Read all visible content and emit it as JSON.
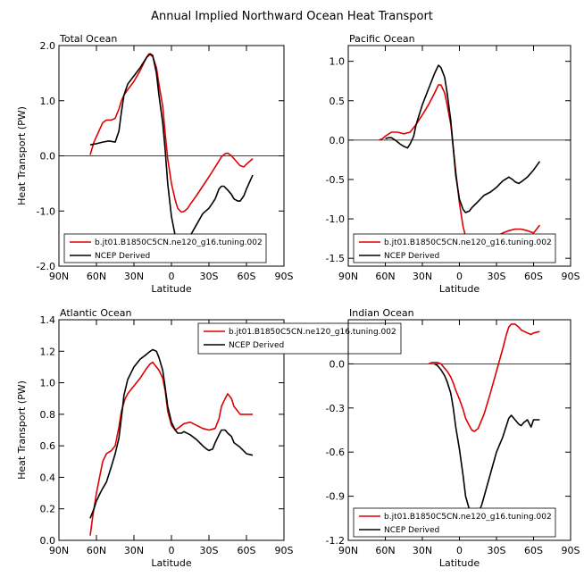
{
  "figure_title": "Annual Implied Northward Ocean Heat Transport",
  "colors": {
    "model": "#e00000",
    "ncep": "#000000"
  },
  "chart_data": [
    {
      "type": "line",
      "title": "Total Ocean",
      "xlabel": "Latitude",
      "ylabel": "Heat Transport (PW)",
      "xlim": [
        90,
        -90
      ],
      "ylim": [
        -2.0,
        2.0
      ],
      "xticks": [
        90,
        60,
        30,
        0,
        -30,
        -60,
        -90
      ],
      "xtick_labels": [
        "90N",
        "60N",
        "30N",
        "0",
        "30S",
        "60S",
        "90S"
      ],
      "yticks": [
        -2.0,
        -1.0,
        0.0,
        1.0,
        2.0
      ],
      "ytick_labels": [
        "-2.0",
        "-1.0",
        "0.0",
        "1.0",
        "2.0"
      ],
      "zero_line": true,
      "legend_placement": "bottom-left",
      "legend": [
        "b.jt01.B1850C5CN.ne120_g16.tuning.002",
        "NCEP Derived"
      ],
      "series": [
        {
          "name": "b.jt01.B1850C5CN.ne120_g16.tuning.002",
          "color": "model",
          "x": [
            65,
            62,
            58,
            55,
            52,
            48,
            45,
            42,
            40,
            38,
            35,
            30,
            25,
            20,
            18,
            15,
            12,
            10,
            7,
            5,
            3,
            0,
            -3,
            -5,
            -8,
            -10,
            -13,
            -15,
            -20,
            -25,
            -30,
            -35,
            -40,
            -43,
            -45,
            -48,
            -50,
            -55,
            -58,
            -60,
            -65
          ],
          "y": [
            0.02,
            0.25,
            0.45,
            0.6,
            0.65,
            0.65,
            0.68,
            0.85,
            1.0,
            1.1,
            1.2,
            1.35,
            1.55,
            1.78,
            1.85,
            1.8,
            1.6,
            1.3,
            0.9,
            0.4,
            -0.05,
            -0.5,
            -0.8,
            -0.95,
            -1.02,
            -1.01,
            -0.95,
            -0.88,
            -0.72,
            -0.55,
            -0.38,
            -0.2,
            -0.02,
            0.04,
            0.05,
            0.0,
            -0.05,
            -0.18,
            -0.2,
            -0.15,
            -0.05
          ]
        },
        {
          "name": "NCEP Derived",
          "color": "ncep",
          "x": [
            65,
            60,
            55,
            50,
            45,
            42,
            40,
            38,
            35,
            30,
            25,
            20,
            17,
            15,
            12,
            10,
            7,
            5,
            3,
            0,
            -3,
            -5,
            -8,
            -10,
            -13,
            -15,
            -20,
            -25,
            -30,
            -35,
            -38,
            -40,
            -42,
            -45,
            -48,
            -50,
            -53,
            -55,
            -58,
            -60,
            -65
          ],
          "y": [
            0.2,
            0.22,
            0.25,
            0.27,
            0.25,
            0.45,
            0.8,
            1.1,
            1.3,
            1.45,
            1.6,
            1.78,
            1.85,
            1.82,
            1.5,
            1.1,
            0.6,
            0.1,
            -0.5,
            -1.1,
            -1.45,
            -1.6,
            -1.65,
            -1.62,
            -1.55,
            -1.45,
            -1.25,
            -1.05,
            -0.95,
            -0.78,
            -0.6,
            -0.55,
            -0.55,
            -0.62,
            -0.7,
            -0.78,
            -0.82,
            -0.82,
            -0.72,
            -0.6,
            -0.35
          ]
        }
      ]
    },
    {
      "type": "line",
      "title": "Pacific Ocean",
      "xlabel": "Latitude",
      "ylabel": "",
      "xlim": [
        90,
        -90
      ],
      "ylim": [
        -1.6,
        1.2
      ],
      "xticks": [
        90,
        60,
        30,
        0,
        -30,
        -60,
        -90
      ],
      "xtick_labels": [
        "90N",
        "60N",
        "30N",
        "0",
        "30S",
        "60S",
        "90S"
      ],
      "yticks": [
        -1.5,
        -1.0,
        -0.5,
        0.0,
        0.5,
        1.0
      ],
      "ytick_labels": [
        "-1.5",
        "-1.0",
        "-0.5",
        "0.0",
        "0.5",
        "1.0"
      ],
      "zero_line": true,
      "legend_placement": "bottom-left",
      "legend": [
        "b.jt01.B1850C5CN.ne120_g16.tuning.002",
        "NCEP Derived"
      ],
      "series": [
        {
          "name": "b.jt01.B1850C5CN.ne120_g16.tuning.002",
          "color": "model",
          "x": [
            65,
            62,
            60,
            55,
            50,
            45,
            40,
            35,
            30,
            25,
            20,
            17,
            15,
            12,
            10,
            7,
            5,
            3,
            0,
            -3,
            -5,
            -10,
            -15,
            -20,
            -25,
            -30,
            -35,
            -40,
            -45,
            -50,
            -55,
            -60,
            -63,
            -65
          ],
          "y": [
            0.0,
            0.02,
            0.05,
            0.1,
            0.1,
            0.08,
            0.1,
            0.2,
            0.32,
            0.45,
            0.6,
            0.7,
            0.7,
            0.6,
            0.45,
            0.2,
            -0.1,
            -0.4,
            -0.8,
            -1.1,
            -1.22,
            -1.27,
            -1.28,
            -1.28,
            -1.26,
            -1.22,
            -1.18,
            -1.15,
            -1.13,
            -1.13,
            -1.15,
            -1.18,
            -1.12,
            -1.08
          ]
        },
        {
          "name": "NCEP Derived",
          "color": "ncep",
          "x": [
            60,
            57,
            55,
            52,
            48,
            45,
            42,
            40,
            37,
            35,
            30,
            25,
            20,
            17,
            15,
            12,
            10,
            7,
            5,
            3,
            0,
            -3,
            -5,
            -8,
            -10,
            -15,
            -20,
            -25,
            -30,
            -35,
            -40,
            -43,
            -45,
            -48,
            -50,
            -55,
            -60,
            -65
          ],
          "y": [
            0.02,
            0.03,
            0.03,
            0.0,
            -0.05,
            -0.08,
            -0.1,
            -0.05,
            0.05,
            0.2,
            0.45,
            0.65,
            0.85,
            0.95,
            0.92,
            0.8,
            0.6,
            0.25,
            -0.1,
            -0.45,
            -0.75,
            -0.88,
            -0.92,
            -0.9,
            -0.86,
            -0.78,
            -0.7,
            -0.66,
            -0.6,
            -0.52,
            -0.47,
            -0.5,
            -0.53,
            -0.55,
            -0.53,
            -0.47,
            -0.38,
            -0.27
          ]
        }
      ]
    },
    {
      "type": "line",
      "title": "Atlantic Ocean",
      "xlabel": "Latitude",
      "ylabel": "Heat Transport (PW)",
      "xlim": [
        90,
        -90
      ],
      "ylim": [
        0.0,
        1.4
      ],
      "xticks": [
        90,
        60,
        30,
        0,
        -30,
        -60,
        -90
      ],
      "xtick_labels": [
        "90N",
        "60N",
        "30N",
        "0",
        "30S",
        "60S",
        "90S"
      ],
      "yticks": [
        0.0,
        0.2,
        0.4,
        0.6,
        0.8,
        1.0,
        1.2,
        1.4
      ],
      "ytick_labels": [
        "0.0",
        "0.2",
        "0.4",
        "0.6",
        "0.8",
        "1.0",
        "1.2",
        "1.4"
      ],
      "zero_line": false,
      "legend_placement": "top-right",
      "legend": [
        "b.jt01.B1850C5CN.ne120_g16.tuning.002",
        "NCEP Derived"
      ],
      "series": [
        {
          "name": "b.jt01.B1850C5CN.ne120_g16.tuning.002",
          "color": "model",
          "x": [
            65,
            63,
            60,
            57,
            55,
            52,
            48,
            45,
            42,
            40,
            37,
            35,
            30,
            25,
            20,
            17,
            15,
            12,
            10,
            7,
            5,
            3,
            0,
            -3,
            -5,
            -10,
            -15,
            -20,
            -25,
            -30,
            -35,
            -38,
            -40,
            -43,
            -45,
            -48,
            -50,
            -55,
            -60,
            -65
          ],
          "y": [
            0.03,
            0.15,
            0.3,
            0.42,
            0.5,
            0.55,
            0.57,
            0.6,
            0.72,
            0.82,
            0.9,
            0.93,
            0.98,
            1.03,
            1.09,
            1.12,
            1.13,
            1.1,
            1.08,
            1.03,
            0.95,
            0.82,
            0.73,
            0.7,
            0.71,
            0.74,
            0.75,
            0.73,
            0.71,
            0.7,
            0.71,
            0.77,
            0.85,
            0.9,
            0.93,
            0.9,
            0.85,
            0.8,
            0.8,
            0.8
          ]
        },
        {
          "name": "NCEP Derived",
          "color": "ncep",
          "x": [
            65,
            62,
            60,
            57,
            55,
            52,
            50,
            48,
            45,
            42,
            40,
            38,
            35,
            30,
            25,
            20,
            17,
            15,
            12,
            10,
            7,
            5,
            3,
            0,
            -3,
            -5,
            -8,
            -10,
            -15,
            -20,
            -25,
            -28,
            -30,
            -33,
            -35,
            -38,
            -40,
            -43,
            -45,
            -48,
            -50,
            -55,
            -60,
            -65
          ],
          "y": [
            0.14,
            0.2,
            0.25,
            0.3,
            0.33,
            0.37,
            0.42,
            0.47,
            0.55,
            0.65,
            0.78,
            0.92,
            1.02,
            1.1,
            1.15,
            1.18,
            1.2,
            1.21,
            1.2,
            1.16,
            1.08,
            0.97,
            0.85,
            0.75,
            0.7,
            0.68,
            0.68,
            0.69,
            0.67,
            0.64,
            0.6,
            0.58,
            0.57,
            0.58,
            0.62,
            0.67,
            0.7,
            0.7,
            0.68,
            0.66,
            0.62,
            0.59,
            0.55,
            0.54
          ]
        }
      ]
    },
    {
      "type": "line",
      "title": "Indian Ocean",
      "xlabel": "Latitude",
      "ylabel": "",
      "xlim": [
        90,
        -90
      ],
      "ylim": [
        -1.2,
        0.3
      ],
      "xticks": [
        90,
        60,
        30,
        0,
        -30,
        -60,
        -90
      ],
      "xtick_labels": [
        "90N",
        "60N",
        "30N",
        "0",
        "30S",
        "60S",
        "90S"
      ],
      "yticks": [
        -1.2,
        -0.9,
        -0.6,
        -0.3,
        0.0
      ],
      "ytick_labels": [
        "-1.2",
        "-0.9",
        "-0.6",
        "-0.3",
        "0.0"
      ],
      "zero_line": true,
      "legend_placement": "bottom-left",
      "legend": [
        "b.jt01.B1850C5CN.ne120_g16.tuning.002",
        "NCEP Derived"
      ],
      "series": [
        {
          "name": "b.jt01.B1850C5CN.ne120_g16.tuning.002",
          "color": "model",
          "x": [
            25,
            22,
            20,
            18,
            15,
            12,
            10,
            7,
            5,
            3,
            0,
            -3,
            -5,
            -8,
            -10,
            -12,
            -15,
            -20,
            -25,
            -30,
            -35,
            -38,
            -40,
            -42,
            -45,
            -48,
            -50,
            -55,
            -58,
            -60,
            -65
          ],
          "y": [
            0.0,
            0.01,
            0.01,
            0.01,
            0.0,
            -0.03,
            -0.05,
            -0.09,
            -0.13,
            -0.18,
            -0.24,
            -0.31,
            -0.37,
            -0.42,
            -0.45,
            -0.46,
            -0.44,
            -0.34,
            -0.2,
            -0.05,
            0.1,
            0.2,
            0.25,
            0.27,
            0.27,
            0.25,
            0.23,
            0.21,
            0.2,
            0.21,
            0.22
          ]
        },
        {
          "name": "NCEP Derived",
          "color": "ncep",
          "x": [
            20,
            18,
            15,
            12,
            10,
            7,
            5,
            3,
            0,
            -3,
            -5,
            -8,
            -10,
            -12,
            -15,
            -18,
            -20,
            -25,
            -30,
            -35,
            -38,
            -40,
            -42,
            -45,
            -48,
            -50,
            -52,
            -55,
            -58,
            -60,
            -65
          ],
          "y": [
            0.0,
            -0.01,
            -0.04,
            -0.08,
            -0.12,
            -0.2,
            -0.3,
            -0.43,
            -0.58,
            -0.76,
            -0.9,
            -0.99,
            -1.02,
            -1.04,
            -1.02,
            -0.96,
            -0.9,
            -0.75,
            -0.6,
            -0.5,
            -0.42,
            -0.37,
            -0.35,
            -0.38,
            -0.41,
            -0.42,
            -0.4,
            -0.38,
            -0.43,
            -0.38,
            -0.38
          ]
        }
      ]
    }
  ]
}
